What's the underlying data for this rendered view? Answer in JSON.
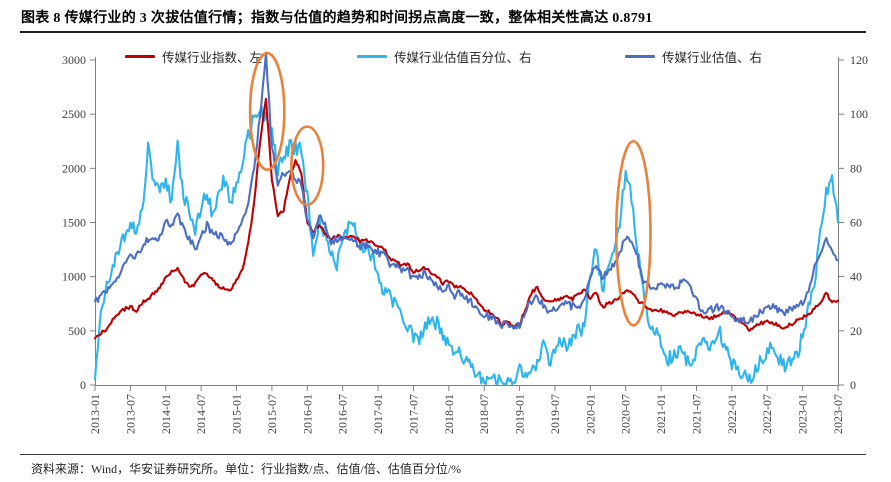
{
  "title": "图表 8 传媒行业的 3 次拔估值行情；指数与估值的趋势和时间拐点高度一致，整体相关性高达 0.8791",
  "source_note": "资料来源：Wind，华安证券研究所。单位：行业指数/点、估值/倍、估值百分位/%",
  "legend": [
    {
      "label": "传媒行业指数、左",
      "color": "#C00000"
    },
    {
      "label": "传媒行业估值百分位、右",
      "color": "#2FB5EE"
    },
    {
      "label": "传媒行业估值、右",
      "color": "#4C6FC6"
    }
  ],
  "colors": {
    "axis_line": "#808080",
    "tick_text": "#3f3f3f",
    "annotation": "#E8823C",
    "background": "#FFFFFF"
  },
  "chart_data": {
    "type": "line",
    "title": "传媒行业的 3 次拔估值行情",
    "grid": false,
    "legend_position": "top",
    "x_start": "2013-01",
    "x_frequency": "monthly",
    "x_tick_labels": [
      "2013-01",
      "2013-07",
      "2014-01",
      "2014-07",
      "2015-01",
      "2015-07",
      "2016-01",
      "2016-07",
      "2017-01",
      "2017-07",
      "2018-01",
      "2018-07",
      "2019-01",
      "2019-07",
      "2020-01",
      "2020-07",
      "2021-01",
      "2021-07",
      "2022-01",
      "2022-07",
      "2023-01",
      "2023-07"
    ],
    "left_axis": {
      "unit": "行业指数/点",
      "range": [
        0,
        3000
      ],
      "ticks": [
        0,
        500,
        1000,
        1500,
        2000,
        2500,
        3000
      ]
    },
    "right_axis": {
      "unit": "估值/倍、估值百分位/%",
      "range": [
        0,
        120
      ],
      "ticks": [
        0,
        20,
        40,
        60,
        80,
        100,
        120
      ]
    },
    "series": [
      {
        "name": "传媒行业估值百分位、右",
        "axis": "right",
        "color": "#2FB5EE",
        "jitter": 2.8,
        "values": [
          2,
          25,
          38,
          44,
          50,
          55,
          61,
          56,
          65,
          87,
          75,
          72,
          75,
          68,
          88,
          70,
          64,
          58,
          66,
          72,
          62,
          73,
          76,
          67,
          74,
          82,
          92,
          99,
          100,
          100,
          93,
          80,
          85,
          88,
          88,
          87,
          70,
          46,
          62,
          56,
          50,
          45,
          52,
          60,
          58,
          50,
          52,
          47,
          42,
          34,
          32,
          29,
          26,
          21,
          18,
          17,
          23,
          22,
          23,
          18,
          16,
          12,
          12,
          9,
          7,
          4,
          2,
          2,
          1,
          1,
          1,
          2,
          5,
          4,
          4,
          8,
          14,
          9,
          12,
          16,
          14,
          18,
          21,
          20,
          40,
          50,
          35,
          42,
          48,
          60,
          80,
          70,
          50,
          35,
          23,
          20,
          15,
          9,
          11,
          13,
          10,
          8,
          12,
          17,
          13,
          16,
          19,
          14,
          8,
          6,
          4,
          1.5,
          6,
          9,
          13,
          13,
          9,
          7,
          9,
          10,
          19,
          28,
          38,
          56,
          71,
          75,
          60
        ]
      },
      {
        "name": "传媒行业指数、左",
        "axis": "left",
        "color": "#C00000",
        "jitter": 16,
        "values": [
          430,
          480,
          520,
          600,
          660,
          700,
          720,
          690,
          760,
          790,
          850,
          900,
          1000,
          1050,
          1080,
          980,
          905,
          930,
          1010,
          1030,
          960,
          905,
          880,
          875,
          970,
          1060,
          1300,
          1700,
          2250,
          2650,
          1900,
          1550,
          1620,
          1900,
          2080,
          1950,
          1500,
          1420,
          1480,
          1400,
          1340,
          1380,
          1360,
          1370,
          1360,
          1330,
          1340,
          1310,
          1280,
          1260,
          1170,
          1150,
          1100,
          1120,
          1040,
          1060,
          1080,
          1035,
          990,
          940,
          960,
          900,
          920,
          870,
          830,
          760,
          700,
          665,
          620,
          560,
          580,
          540,
          560,
          700,
          850,
          895,
          800,
          757,
          780,
          800,
          810,
          790,
          850,
          870,
          800,
          850,
          720,
          750,
          780,
          820,
          877,
          860,
          780,
          740,
          692,
          680,
          690,
          665,
          640,
          660,
          670,
          674,
          650,
          640,
          620,
          628,
          660,
          664,
          640,
          600,
          560,
          510,
          540,
          570,
          580,
          572,
          550,
          526,
          560,
          590,
          620,
          660,
          700,
          760,
          849,
          757,
          780
        ]
      },
      {
        "name": "传媒行业估值、右",
        "axis": "right",
        "color": "#4C6FC6",
        "jitter": 1.4,
        "values": [
          31,
          33,
          34,
          38,
          41,
          44,
          47,
          48,
          51,
          54,
          53,
          55,
          60,
          59,
          63,
          58,
          54,
          50,
          55,
          59,
          56,
          55,
          54,
          52,
          56,
          60,
          68,
          80,
          100,
          122,
          88,
          75,
          78,
          80,
          76,
          74,
          60,
          55,
          62,
          60,
          53,
          54,
          53,
          54,
          53,
          51,
          52,
          50,
          49,
          48,
          45,
          44,
          42,
          42,
          39,
          40,
          41,
          39,
          37,
          35,
          36,
          33,
          34,
          32,
          30,
          28,
          26,
          25,
          24,
          22,
          23,
          21,
          22,
          27,
          31,
          33,
          29,
          27,
          28,
          29,
          30,
          29,
          29,
          32,
          40,
          45,
          40,
          42,
          44,
          48,
          55,
          53,
          47,
          38,
          37,
          36,
          37,
          36,
          36,
          37,
          38,
          37,
          31,
          27,
          28,
          28,
          29,
          27,
          25,
          24,
          24,
          24,
          25,
          27,
          28,
          29,
          27,
          27,
          28,
          29,
          30,
          34,
          44,
          48,
          54,
          50,
          46
        ]
      }
    ],
    "annotations": {
      "color": "#E8823C",
      "ellipses": [
        {
          "label": "rally-2015-mid",
          "cx_month_index": 29.2,
          "cy_right_value": 101,
          "rx_months": 2.9,
          "ry_right_units": 21.5
        },
        {
          "label": "rally-2015-end",
          "cx_month_index": 36.0,
          "cy_right_value": 81,
          "rx_months": 2.7,
          "ry_right_units": 14.4
        },
        {
          "label": "rally-2020-mid",
          "cx_month_index": 91.3,
          "cy_right_value": 56,
          "rx_months": 2.9,
          "ry_right_units": 34
        }
      ]
    }
  }
}
